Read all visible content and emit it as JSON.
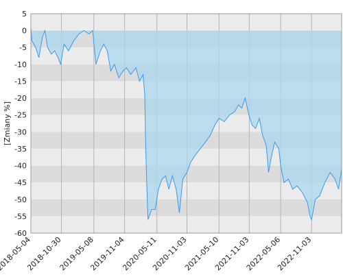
{
  "chart_data": {
    "type": "area",
    "y_label": "[Zmiany %]",
    "x": [
      "2018-05-04",
      "2018-05-10",
      "2018-06-01",
      "2018-06-20",
      "2018-07-10",
      "2018-07-25",
      "2018-08-10",
      "2018-09-01",
      "2018-09-20",
      "2018-10-10",
      "2018-10-25",
      "2018-11-15",
      "2018-12-10",
      "2019-01-10",
      "2019-02-10",
      "2019-03-10",
      "2019-04-10",
      "2019-05-01",
      "2019-05-20",
      "2019-06-15",
      "2019-07-05",
      "2019-07-25",
      "2019-08-15",
      "2019-09-05",
      "2019-10-01",
      "2019-10-25",
      "2019-11-15",
      "2019-12-10",
      "2020-01-10",
      "2020-01-30",
      "2020-02-20",
      "2020-03-01",
      "2020-03-05",
      "2020-03-12",
      "2020-03-20",
      "2020-04-10",
      "2020-05-01",
      "2020-05-20",
      "2020-06-10",
      "2020-07-01",
      "2020-07-20",
      "2020-08-10",
      "2020-09-01",
      "2020-09-20",
      "2020-10-10",
      "2020-11-03",
      "2020-11-25",
      "2020-12-20",
      "2021-01-20",
      "2021-02-20",
      "2021-03-20",
      "2021-04-15",
      "2021-05-10",
      "2021-06-10",
      "2021-07-10",
      "2021-08-10",
      "2021-09-01",
      "2021-09-20",
      "2021-10-10",
      "2021-11-01",
      "2021-11-20",
      "2021-12-10",
      "2022-01-01",
      "2022-01-20",
      "2022-02-10",
      "2022-02-24",
      "2022-03-10",
      "2022-04-01",
      "2022-04-25",
      "2022-05-06",
      "2022-05-25",
      "2022-06-20",
      "2022-07-15",
      "2022-08-10",
      "2022-09-10",
      "2022-10-10",
      "2022-10-25",
      "2022-11-03",
      "2022-11-25",
      "2022-12-20",
      "2023-01-20",
      "2023-02-20",
      "2023-03-20",
      "2023-04-10",
      "2023-04-28"
    ],
    "series": [
      {
        "color": "#3d9af0",
        "fill": "#a9d7ec",
        "values": [
          1,
          -3,
          -5,
          -8,
          -2,
          0,
          -5,
          -7,
          -6,
          -8,
          -10,
          -4,
          -6,
          -3,
          -1,
          0,
          -1,
          0,
          -10,
          -6,
          -4,
          -6,
          -12,
          -10,
          -14,
          -12,
          -11,
          -13,
          -11,
          -15,
          -13,
          -19,
          -31,
          -45,
          -56,
          -53,
          -53,
          -47,
          -44,
          -43,
          -47,
          -43,
          -47,
          -54,
          -44,
          -42,
          -39,
          -37,
          -35,
          -33,
          -31,
          -28,
          -26,
          -27,
          -25,
          -24,
          -22,
          -23,
          -20,
          -25,
          -28,
          -29,
          -26,
          -31,
          -34,
          -42,
          -38,
          -33,
          -35,
          -40,
          -45,
          -44,
          -47,
          -46,
          -48,
          -51,
          -55,
          -56,
          -50,
          -49,
          -45,
          -42,
          -44,
          -47,
          -41
        ]
      }
    ],
    "xlim": [
      "2018-05-04",
      "2023-04-28"
    ],
    "xticks": [
      "2018-05-04",
      "2018-10-30",
      "2019-05-08",
      "2019-11-04",
      "2020-05-11",
      "2020-11-03",
      "2021-05-10",
      "2021-11-03",
      "2022-05-06",
      "2022-11-03"
    ],
    "ylim": [
      -60,
      5
    ],
    "yticks": [
      5,
      0,
      -5,
      -10,
      -15,
      -20,
      -25,
      -30,
      -35,
      -40,
      -45,
      -50,
      -55,
      -60
    ],
    "band_colors": [
      "#ececec",
      "#dcdcdc"
    ],
    "grid_color": "#b4b4b4"
  }
}
